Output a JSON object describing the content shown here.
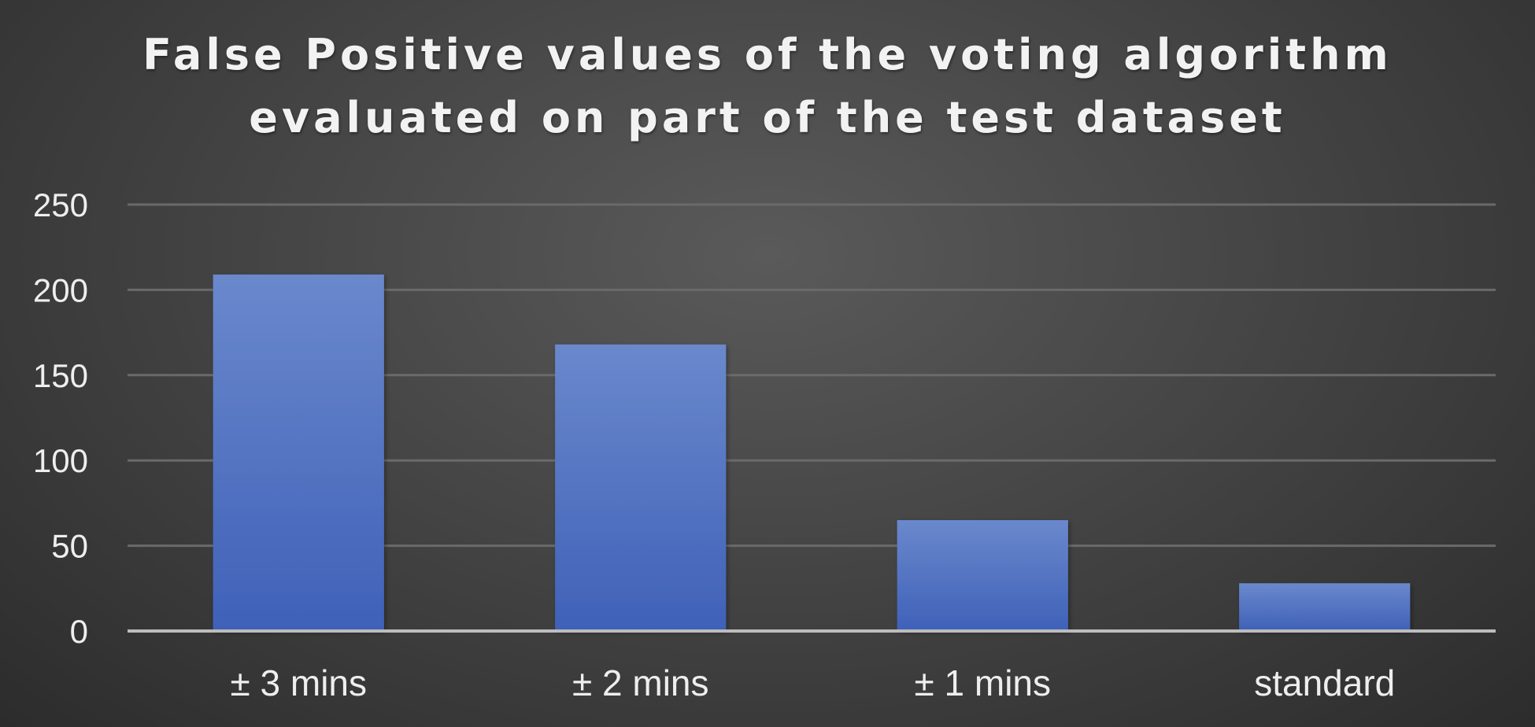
{
  "chart_data": {
    "type": "bar",
    "title_lines": [
      "False Positive values of the voting algorithm",
      "evaluated on part of the test dataset"
    ],
    "categories": [
      "± 3 mins",
      "± 2 mins",
      "± 1 mins",
      "standard"
    ],
    "values": [
      209,
      168,
      65,
      28
    ],
    "ylim": [
      0,
      250
    ],
    "yticks": [
      "0",
      "50",
      "100",
      "150",
      "200",
      "250"
    ],
    "ytick_values": [
      0,
      50,
      100,
      150,
      200,
      250
    ],
    "grid": true,
    "legend": "none",
    "xlabel": "",
    "ylabel": "",
    "colors": {
      "bar_top": "#6a88cc",
      "bar_bottom": "#3f61b8",
      "grid": "#6a6a6a",
      "axis": "#bdbdbd",
      "text": "#eeeeee"
    }
  }
}
